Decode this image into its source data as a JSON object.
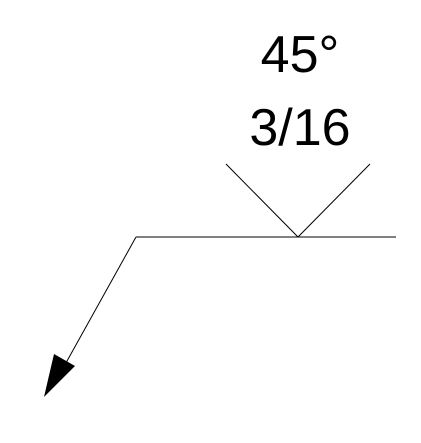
{
  "symbol": {
    "groove_angle": "45°",
    "weld_size": "3/16"
  }
}
